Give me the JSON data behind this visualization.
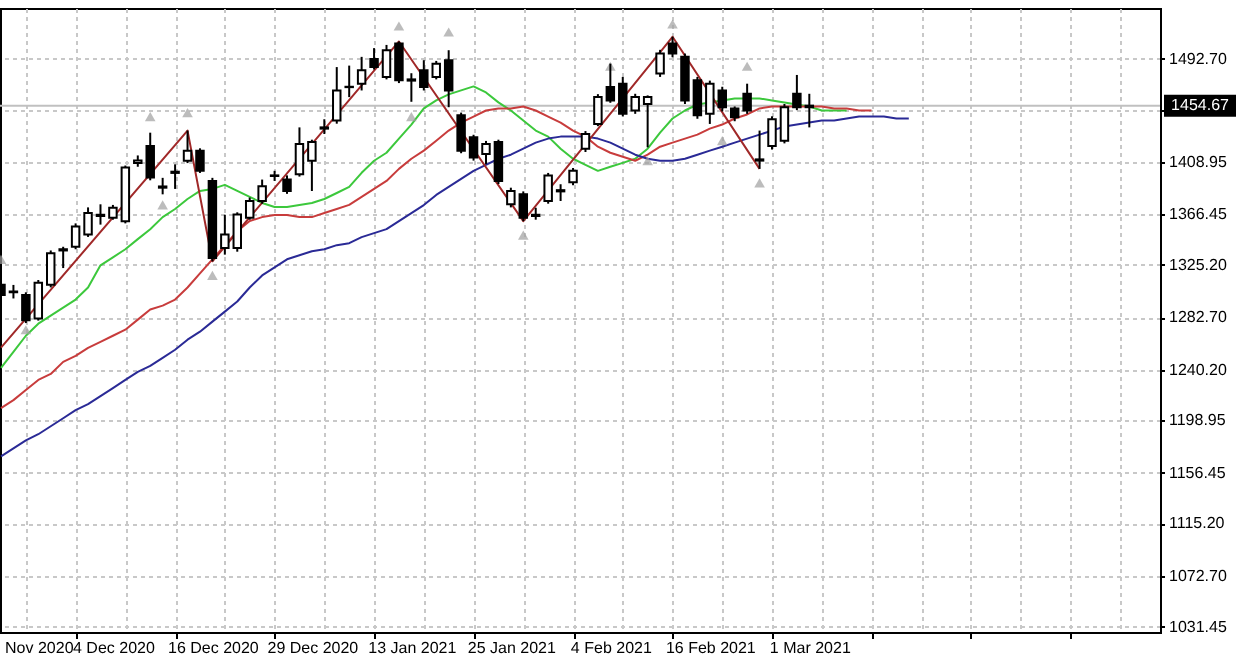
{
  "chart_data": {
    "type": "candlestick",
    "categories": [
      null,
      null,
      null,
      "Nov 2020",
      null,
      null,
      null,
      null,
      null,
      "4 Dec 2020",
      null,
      null,
      null,
      null,
      null,
      null,
      null,
      "16 Dec 2020",
      null,
      null,
      null,
      null,
      null,
      null,
      null,
      "29 Dec 2020",
      null,
      null,
      null,
      null,
      null,
      null,
      null,
      "13 Jan 2021",
      null,
      null,
      null,
      null,
      null,
      null,
      null,
      "25 Jan 2021",
      null,
      null,
      null,
      null,
      null,
      null,
      null,
      "4 Feb 2021",
      null,
      null,
      null,
      null,
      null,
      null,
      null,
      "16 Feb 2021",
      null,
      null,
      null,
      null,
      null,
      null,
      null,
      "1 Mar 2021",
      null,
      null,
      null,
      null,
      null,
      null,
      null,
      null,
      null,
      null,
      null,
      null,
      null,
      null,
      null,
      null,
      null,
      null,
      null,
      null,
      null,
      null,
      null,
      null,
      null,
      null,
      null,
      null
    ],
    "ohlc": [
      [
        1309.1,
        1314.5,
        1298.2,
        1300.9
      ],
      [
        1303.6,
        1309,
        1298,
        1303
      ],
      [
        1300.9,
        1303,
        1278,
        1280.2
      ],
      [
        1281.8,
        1313,
        1280,
        1310.7
      ],
      [
        1309.1,
        1337,
        1307,
        1334.7
      ],
      [
        1337,
        1340,
        1322.7,
        1338
      ],
      [
        1340.1,
        1359,
        1338,
        1356.5
      ],
      [
        1350,
        1372,
        1348,
        1367.4
      ],
      [
        1365,
        1374.5,
        1358,
        1366
      ],
      [
        1363.5,
        1374,
        1362,
        1371.7
      ],
      [
        1360.8,
        1406,
        1359,
        1404.4
      ],
      [
        1408,
        1414.2,
        1405,
        1410
      ],
      [
        1421.8,
        1432.7,
        1394,
        1396.2
      ],
      [
        1388,
        1396,
        1382.6,
        1389
      ],
      [
        1400,
        1407,
        1387,
        1401
      ],
      [
        1409.9,
        1434.4,
        1408,
        1418
      ],
      [
        1418,
        1420,
        1400,
        1401.7
      ],
      [
        1393.5,
        1396,
        1328.2,
        1330.9
      ],
      [
        1339,
        1366,
        1333.6,
        1350
      ],
      [
        1339,
        1368,
        1336,
        1366.3
      ],
      [
        1363.5,
        1380,
        1362,
        1377.2
      ],
      [
        1377.2,
        1394.6,
        1375,
        1389.2
      ],
      [
        1397.5,
        1401.7,
        1393.5,
        1398
      ],
      [
        1394.6,
        1398,
        1383,
        1385.3
      ],
      [
        1399,
        1437,
        1397,
        1423.5
      ],
      [
        1409.9,
        1427,
        1385.3,
        1425.1
      ],
      [
        1436,
        1443.6,
        1431.6,
        1437
      ],
      [
        1442.5,
        1486,
        1440,
        1467
      ],
      [
        1469.7,
        1487.2,
        1461.6,
        1470
      ],
      [
        1472.5,
        1494.3,
        1467,
        1483.4
      ],
      [
        1492.6,
        1501.4,
        1484,
        1486.1
      ],
      [
        1478,
        1504,
        1476,
        1499.7
      ],
      [
        1505.2,
        1506.8,
        1473,
        1475.2
      ],
      [
        1475,
        1481,
        1457.8,
        1476
      ],
      [
        1483.4,
        1491.6,
        1467,
        1469.8
      ],
      [
        1478,
        1491,
        1476,
        1488.8
      ],
      [
        1491.6,
        1499.7,
        1453.4,
        1467
      ],
      [
        1446.9,
        1449,
        1416,
        1418
      ],
      [
        1428.9,
        1431,
        1410,
        1412.6
      ],
      [
        1415.3,
        1426,
        1407.1,
        1423.5
      ],
      [
        1425.1,
        1427,
        1391,
        1393.5
      ],
      [
        1374.5,
        1388,
        1372,
        1385.3
      ],
      [
        1382.6,
        1385,
        1360.8,
        1363.5
      ],
      [
        1365,
        1371.7,
        1362,
        1366
      ],
      [
        1377.2,
        1400,
        1375,
        1397.9
      ],
      [
        1385,
        1390.8,
        1377.2,
        1386
      ],
      [
        1392.4,
        1404,
        1390,
        1401.7
      ],
      [
        1419.7,
        1434,
        1417,
        1431.6
      ],
      [
        1439.8,
        1464,
        1438,
        1461.6
      ],
      [
        1469.8,
        1488.8,
        1457,
        1458.9
      ],
      [
        1472.5,
        1478,
        1446,
        1448
      ],
      [
        1450.7,
        1464.3,
        1448,
        1461.6
      ],
      [
        1456,
        1463,
        1420.8,
        1461.6
      ],
      [
        1480.7,
        1500,
        1478,
        1497
      ],
      [
        1505.2,
        1510.6,
        1494,
        1497
      ],
      [
        1494.3,
        1497,
        1456,
        1458.9
      ],
      [
        1475.2,
        1478,
        1444,
        1446.9
      ],
      [
        1448,
        1475,
        1439.8,
        1472.5
      ],
      [
        1467,
        1470,
        1450,
        1453.4
      ],
      [
        1452.4,
        1454,
        1442,
        1445.3
      ],
      [
        1464.3,
        1472.5,
        1448,
        1450.7
      ],
      [
        1410,
        1434.4,
        1403.3,
        1411
      ],
      [
        1421.8,
        1446,
        1419,
        1443.6
      ],
      [
        1426.2,
        1456,
        1424,
        1453.4
      ],
      [
        1464.3,
        1479.6,
        1451,
        1453.4
      ],
      [
        1453.4,
        1464.3,
        1437,
        1454.67
      ],
      null,
      null,
      null,
      null,
      null,
      null,
      null,
      null,
      null,
      null,
      null,
      null,
      null,
      null,
      null,
      null,
      null,
      null,
      null,
      null,
      null,
      null,
      null,
      null,
      null,
      null,
      null,
      null
    ],
    "series": [
      {
        "type": "line",
        "color": "#3cc83c",
        "values": [
          1241.6,
          1254.6,
          1267.7,
          1277.5,
          1284.1,
          1290.6,
          1297.1,
          1306.9,
          1324.9,
          1331.4,
          1338.0,
          1346.2,
          1354.3,
          1364.1,
          1370.7,
          1378.8,
          1385.4,
          1387.0,
          1390.3,
          1385.4,
          1380.5,
          1375.6,
          1372.3,
          1372.3,
          1373.9,
          1375.6,
          1378.8,
          1383.7,
          1388.6,
          1400.1,
          1409.9,
          1416.4,
          1427.9,
          1439.3,
          1452.4,
          1458.9,
          1463.8,
          1467.1,
          1470.3,
          1465.4,
          1457.3,
          1450.7,
          1442.6,
          1434.4,
          1429.5,
          1419.7,
          1411.5,
          1406.6,
          1401.7,
          1405.0,
          1408.2,
          1411.5,
          1419.7,
          1432.8,
          1444.2,
          1450.7,
          1455.6,
          1457.3,
          1458.9,
          1460.5,
          1460.5,
          1460.5,
          1458.9,
          1457.3,
          1455.6,
          1454.0,
          1450.7,
          1450.7,
          1450.7,
          null,
          null,
          null,
          null,
          null,
          null,
          null,
          null,
          null,
          null,
          null,
          null,
          null,
          null,
          null,
          null,
          null,
          null,
          null,
          null,
          null,
          null,
          null,
          null,
          null
        ]
      },
      {
        "type": "line",
        "color": "#c83c3c",
        "values": [
          1208.9,
          1215.4,
          1223.6,
          1231.8,
          1236.7,
          1246.5,
          1251.4,
          1257.9,
          1262.8,
          1267.7,
          1272.6,
          1280.8,
          1289.0,
          1292.2,
          1297.1,
          1306.9,
          1318.4,
          1329.8,
          1341.2,
          1352.7,
          1360.9,
          1364.1,
          1365.8,
          1365.8,
          1364.1,
          1364.1,
          1367.4,
          1370.7,
          1374.0,
          1380.5,
          1387.0,
          1393.5,
          1403.3,
          1411.5,
          1418.1,
          1426.2,
          1434.4,
          1440.9,
          1445.8,
          1450.7,
          1452.4,
          1452.4,
          1454.0,
          1450.7,
          1445.8,
          1440.9,
          1434.4,
          1429.5,
          1421.3,
          1416.4,
          1413.1,
          1409.9,
          1414.8,
          1421.3,
          1424.6,
          1427.9,
          1431.1,
          1436.0,
          1439.3,
          1444.2,
          1447.5,
          1452.4,
          1454.0,
          1454.0,
          1454.0,
          1454.0,
          1454.0,
          1452.4,
          1452.4,
          1450.7,
          1450.7,
          null,
          null,
          null,
          null,
          null,
          null,
          null,
          null,
          null,
          null,
          null,
          null,
          null,
          null,
          null,
          null,
          null,
          null,
          null,
          null,
          null,
          null,
          null
        ]
      },
      {
        "type": "line",
        "color": "#2a2a96",
        "values": [
          1169.7,
          1176.2,
          1182.7,
          1187.7,
          1194.2,
          1200.7,
          1207.3,
          1212.2,
          1218.7,
          1225.2,
          1231.8,
          1238.3,
          1243.2,
          1249.7,
          1256.3,
          1264.5,
          1271.0,
          1279.2,
          1287.3,
          1295.5,
          1306.9,
          1316.7,
          1323.3,
          1329.8,
          1333.1,
          1336.4,
          1338.0,
          1341.3,
          1342.9,
          1347.8,
          1351.1,
          1354.3,
          1360.9,
          1367.4,
          1373.9,
          1382.1,
          1388.6,
          1395.2,
          1401.7,
          1406.6,
          1411.5,
          1414.8,
          1419.7,
          1424.6,
          1427.9,
          1429.5,
          1429.5,
          1429.5,
          1427.9,
          1424.6,
          1419.7,
          1414.8,
          1411.5,
          1409.9,
          1409.9,
          1411.5,
          1414.8,
          1418.1,
          1421.3,
          1424.6,
          1427.9,
          1431.1,
          1434.4,
          1437.7,
          1439.3,
          1440.9,
          1442.6,
          1442.6,
          1444.2,
          1445.8,
          1445.8,
          1445.8,
          1444.2,
          1444.2,
          null,
          null,
          null,
          null,
          null,
          null,
          null,
          null,
          null,
          null,
          null,
          null,
          null,
          null,
          null,
          null,
          null,
          null,
          null,
          null
        ]
      },
      {
        "type": "line",
        "color": "#a02828",
        "values": [
          1258,
          null,
          null,
          null,
          null,
          null,
          null,
          null,
          null,
          null,
          null,
          null,
          null,
          null,
          null,
          1434.4,
          null,
          1328.2,
          null,
          null,
          null,
          null,
          null,
          null,
          null,
          null,
          null,
          null,
          null,
          null,
          null,
          null,
          1506.8,
          null,
          null,
          null,
          null,
          null,
          null,
          null,
          null,
          null,
          1360.8,
          null,
          null,
          null,
          null,
          null,
          null,
          null,
          null,
          null,
          null,
          null,
          1510.6,
          null,
          null,
          null,
          null,
          null,
          null,
          1403.3,
          null,
          null,
          null,
          null,
          null,
          null,
          null,
          null,
          null,
          null,
          null,
          null,
          null,
          null,
          null,
          null,
          null,
          null,
          null,
          null,
          null,
          null,
          null,
          null,
          null,
          null,
          null,
          null,
          null,
          null,
          null,
          null
        ]
      },
      {
        "type": "scatter",
        "marker": "triangle",
        "color": "#a0a0a0",
        "values": [
          1329.8,
          null,
          1272.6,
          null,
          null,
          null,
          null,
          null,
          null,
          null,
          null,
          null,
          1445.8,
          1374.0,
          null,
          1449.0,
          null,
          1316.7,
          null,
          null,
          null,
          null,
          null,
          null,
          null,
          null,
          null,
          null,
          null,
          null,
          null,
          null,
          1519.4,
          1445.8,
          null,
          null,
          1514.5,
          null,
          null,
          null,
          null,
          null,
          1349.4,
          null,
          null,
          null,
          null,
          null,
          null,
          1486.7,
          null,
          null,
          1409.9,
          null,
          1521.0,
          null,
          null,
          null,
          1426.2,
          null,
          1486.7,
          1391.9,
          null,
          null,
          null,
          null,
          null,
          null,
          null,
          null,
          null,
          null,
          null,
          null,
          null,
          null,
          null,
          null,
          null,
          null,
          null,
          null,
          null,
          null,
          null,
          null,
          null,
          null,
          null,
          null,
          null,
          null,
          null,
          null
        ]
      }
    ],
    "ylim": [
      1027,
      1534
    ],
    "yticks": [
      {
        "value": 1031.45,
        "label": "1031.45"
      },
      {
        "value": 1072.7,
        "label": "1072.70"
      },
      {
        "value": 1115.2,
        "label": "1115.20"
      },
      {
        "value": 1156.45,
        "label": "1156.45"
      },
      {
        "value": 1198.95,
        "label": "1198.95"
      },
      {
        "value": 1240.2,
        "label": "1240.20"
      },
      {
        "value": 1282.7,
        "label": "1282.70"
      },
      {
        "value": 1325.2,
        "label": "1325.20"
      },
      {
        "value": 1366.45,
        "label": "1366.45"
      },
      {
        "value": 1408.95,
        "label": "1408.95"
      },
      {
        "value": 1451.45,
        "label": null
      },
      {
        "value": 1492.7,
        "label": "1492.70"
      }
    ],
    "ref_lines": [
      {
        "axis": "y",
        "value": 1454.67,
        "label": "1454.67",
        "color": "#c0c0c0"
      }
    ],
    "grid": true
  }
}
